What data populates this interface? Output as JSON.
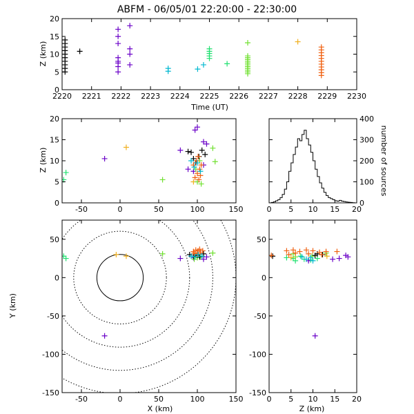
{
  "figure": {
    "title": "ABFM - 06/05/01 22:20:00 - 22:30:00",
    "colors": {
      "axis": "#000000",
      "background": "#ffffff"
    }
  },
  "chart_data": [
    {
      "id": "time-height",
      "type": "scatter",
      "xlabel": "Time (UT)",
      "ylabel": "Z (km)",
      "xlim": [
        2220,
        2230
      ],
      "ylim": [
        0,
        20
      ],
      "xticks": [
        2220,
        2221,
        2222,
        2223,
        2224,
        2225,
        2226,
        2227,
        2228,
        2229,
        2230
      ],
      "yticks": [
        0,
        5,
        10,
        15,
        20
      ],
      "series": [
        {
          "color": "#000000",
          "points": [
            [
              2220.1,
              5
            ],
            [
              2220.1,
              6
            ],
            [
              2220.1,
              7
            ],
            [
              2220.1,
              8
            ],
            [
              2220.1,
              9
            ],
            [
              2220.1,
              10
            ],
            [
              2220.1,
              11
            ],
            [
              2220.1,
              12
            ],
            [
              2220.1,
              13
            ],
            [
              2220.1,
              14
            ],
            [
              2220.6,
              10.8
            ]
          ]
        },
        {
          "color": "#6a00c8",
          "points": [
            [
              2221.9,
              17
            ],
            [
              2221.9,
              15
            ],
            [
              2221.9,
              13
            ],
            [
              2221.9,
              9
            ],
            [
              2221.9,
              8
            ],
            [
              2221.9,
              7.5
            ],
            [
              2221.9,
              6.5
            ],
            [
              2221.9,
              5
            ],
            [
              2222.3,
              18
            ],
            [
              2222.3,
              11.5
            ],
            [
              2222.3,
              10
            ],
            [
              2222.3,
              7
            ]
          ]
        },
        {
          "color": "#00b8d0",
          "points": [
            [
              2223.6,
              6
            ],
            [
              2223.6,
              5.2
            ],
            [
              2224.6,
              5.8
            ],
            [
              2224.8,
              7
            ]
          ]
        },
        {
          "color": "#20e070",
          "points": [
            [
              2225.0,
              10.2
            ],
            [
              2225.0,
              9.5
            ],
            [
              2225.0,
              8.8
            ],
            [
              2225.0,
              10.8
            ],
            [
              2225.0,
              11.5
            ],
            [
              2225.6,
              7.3
            ]
          ]
        },
        {
          "color": "#70e030",
          "points": [
            [
              2226.3,
              13.2
            ],
            [
              2226.3,
              9.5
            ],
            [
              2226.3,
              9
            ],
            [
              2226.3,
              8.5
            ],
            [
              2226.3,
              8
            ],
            [
              2226.3,
              7.5
            ],
            [
              2226.3,
              7
            ],
            [
              2226.3,
              6.5
            ],
            [
              2226.3,
              6
            ],
            [
              2226.3,
              5.5
            ],
            [
              2226.3,
              5
            ],
            [
              2226.3,
              4.5
            ]
          ]
        },
        {
          "color": "#f0b020",
          "points": [
            [
              2228.0,
              13.5
            ]
          ]
        },
        {
          "color": "#f06010",
          "points": [
            [
              2228.8,
              12
            ],
            [
              2228.8,
              11.2
            ],
            [
              2228.8,
              10.4
            ],
            [
              2228.8,
              9.6
            ],
            [
              2228.8,
              8.8
            ],
            [
              2228.8,
              8
            ],
            [
              2228.8,
              7.2
            ],
            [
              2228.8,
              6.4
            ],
            [
              2228.8,
              5.6
            ],
            [
              2228.8,
              4.8
            ],
            [
              2228.8,
              4
            ]
          ]
        }
      ]
    },
    {
      "id": "x-z",
      "type": "scatter",
      "xlabel": "",
      "ylabel": "Z (km)",
      "xlim": [
        -75,
        150
      ],
      "ylim": [
        0,
        20
      ],
      "xticks": [
        -50,
        0,
        50,
        100,
        150
      ],
      "yticks": [
        0,
        5,
        10,
        15,
        20
      ],
      "series": [
        {
          "color": "#20e070",
          "points": [
            [
              -70,
              7.2
            ],
            [
              -73,
              5.5
            ]
          ]
        },
        {
          "color": "#6a00c8",
          "points": [
            [
              -20,
              10.5
            ],
            [
              78,
              12.5
            ],
            [
              97,
              17.3
            ],
            [
              100,
              18
            ],
            [
              108,
              14.5
            ],
            [
              112,
              14
            ],
            [
              88,
              8
            ],
            [
              95,
              7.5
            ],
            [
              108,
              9
            ]
          ]
        },
        {
          "color": "#f0b020",
          "points": [
            [
              8,
              13.2
            ],
            [
              95,
              5
            ]
          ]
        },
        {
          "color": "#70e030",
          "points": [
            [
              55,
              5.5
            ],
            [
              120,
              13
            ],
            [
              123,
              9.8
            ],
            [
              100,
              5
            ],
            [
              105,
              4.5
            ],
            [
              98,
              8
            ],
            [
              103,
              10
            ]
          ]
        },
        {
          "color": "#000000",
          "points": [
            [
              88,
              12.2
            ],
            [
              95,
              10.5
            ],
            [
              102,
              11
            ],
            [
              110,
              11.5
            ],
            [
              98,
              9.5
            ],
            [
              92,
              12
            ],
            [
              106,
              12.5
            ]
          ]
        },
        {
          "color": "#f06010",
          "points": [
            [
              97,
              6
            ],
            [
              100,
              7
            ],
            [
              103,
              8
            ],
            [
              105,
              9
            ],
            [
              95,
              9
            ],
            [
              101,
              11
            ],
            [
              104,
              6.5
            ],
            [
              99,
              10
            ],
            [
              102,
              5.5
            ]
          ]
        },
        {
          "color": "#00b8d0",
          "points": [
            [
              92,
              10
            ],
            [
              96,
              8.5
            ],
            [
              100,
              9.5
            ],
            [
              104,
              7.5
            ]
          ]
        }
      ]
    },
    {
      "id": "height-histogram",
      "type": "bar",
      "xlabel": "",
      "ylabel": "number of sources",
      "xlim": [
        0,
        20
      ],
      "ylim": [
        0,
        400
      ],
      "xticks": [
        0,
        5,
        10,
        15,
        20
      ],
      "yticks": [
        0,
        100,
        200,
        300,
        400
      ],
      "x": [
        0.0,
        0.5,
        1.0,
        1.5,
        2.0,
        2.5,
        3.0,
        3.5,
        4.0,
        4.5,
        5.0,
        5.5,
        6.0,
        6.5,
        7.0,
        7.5,
        8.0,
        8.5,
        9.0,
        9.5,
        10.0,
        10.5,
        11.0,
        11.5,
        12.0,
        12.5,
        13.0,
        13.5,
        14.0,
        14.5,
        15.0,
        15.5,
        16.0,
        16.5,
        17.0,
        17.5,
        18.0,
        18.5,
        19.0,
        19.5
      ],
      "values": [
        0,
        2,
        5,
        10,
        15,
        25,
        40,
        65,
        100,
        150,
        190,
        230,
        265,
        305,
        295,
        325,
        345,
        305,
        275,
        240,
        200,
        160,
        125,
        95,
        70,
        50,
        35,
        25,
        20,
        15,
        10,
        8,
        12,
        8,
        6,
        4,
        3,
        2,
        1,
        0
      ]
    },
    {
      "id": "x-y",
      "type": "scatter",
      "xlabel": "X (km)",
      "ylabel": "Y (km)",
      "xlim": [
        -75,
        150
      ],
      "ylim": [
        -150,
        75
      ],
      "xticks": [
        -50,
        0,
        50,
        100,
        150
      ],
      "yticks": [
        -150,
        -100,
        -50,
        0,
        50
      ],
      "range_rings_km": [
        30,
        60,
        90,
        120,
        150
      ],
      "series": [
        {
          "color": "#20e070",
          "points": [
            [
              -73,
              28
            ],
            [
              -70,
              25
            ]
          ]
        },
        {
          "color": "#6a00c8",
          "points": [
            [
              -20,
              -76
            ],
            [
              78,
              25
            ],
            [
              95,
              26
            ],
            [
              112,
              27
            ],
            [
              108,
              24
            ]
          ]
        },
        {
          "color": "#f0b020",
          "points": [
            [
              -5,
              30
            ],
            [
              8,
              28
            ]
          ]
        },
        {
          "color": "#70e030",
          "points": [
            [
              55,
              31
            ],
            [
              120,
              32
            ],
            [
              100,
              26
            ],
            [
              96,
              24
            ],
            [
              104,
              27
            ]
          ]
        },
        {
          "color": "#000000",
          "points": [
            [
              90,
              30
            ],
            [
              95,
              28
            ],
            [
              100,
              29
            ],
            [
              108,
              31
            ],
            [
              103,
              27
            ]
          ]
        },
        {
          "color": "#f06010",
          "points": [
            [
              95,
              34
            ],
            [
              98,
              36
            ],
            [
              101,
              35
            ],
            [
              104,
              33
            ],
            [
              107,
              35
            ],
            [
              100,
              31
            ],
            [
              96,
              32
            ],
            [
              103,
              37
            ]
          ]
        },
        {
          "color": "#00b8d0",
          "points": [
            [
              92,
              28
            ],
            [
              97,
              27
            ],
            [
              101,
              30
            ],
            [
              106,
              28
            ]
          ]
        }
      ]
    },
    {
      "id": "z-y",
      "type": "scatter",
      "xlabel": "Z (km)",
      "ylabel": "",
      "xlim": [
        0,
        20
      ],
      "ylim": [
        -150,
        75
      ],
      "xticks": [
        0,
        5,
        10,
        15,
        20
      ],
      "yticks": [
        -150,
        -100,
        -50,
        0,
        50
      ],
      "series": [
        {
          "color": "#20e070",
          "points": [
            [
              7.2,
              28
            ],
            [
              5.5,
              25
            ],
            [
              4,
              26
            ],
            [
              6,
              22
            ],
            [
              8,
              24
            ],
            [
              9.5,
              23
            ],
            [
              11,
              25
            ]
          ]
        },
        {
          "color": "#6a00c8",
          "points": [
            [
              10.5,
              -76
            ],
            [
              17.5,
              29
            ],
            [
              18,
              27
            ],
            [
              16,
              25
            ],
            [
              14.5,
              24
            ],
            [
              9,
              22
            ]
          ]
        },
        {
          "color": "#f0b020",
          "points": [
            [
              13.2,
              28
            ],
            [
              5,
              26
            ]
          ]
        },
        {
          "color": "#70e030",
          "points": [
            [
              5.5,
              31
            ],
            [
              13,
              32
            ],
            [
              9.8,
              28
            ],
            [
              6,
              27
            ]
          ]
        },
        {
          "color": "#000000",
          "points": [
            [
              0.8,
              28
            ],
            [
              12.2,
              30
            ],
            [
              10.5,
              29
            ],
            [
              11,
              31
            ]
          ]
        },
        {
          "color": "#f06010",
          "points": [
            [
              0.5,
              29
            ],
            [
              4,
              35
            ],
            [
              5.5,
              36
            ],
            [
              7,
              34
            ],
            [
              8.5,
              36
            ],
            [
              10,
              35
            ],
            [
              11.5,
              33
            ],
            [
              13,
              34
            ],
            [
              6,
              32
            ],
            [
              9,
              31
            ],
            [
              12,
              30
            ],
            [
              15.5,
              34
            ],
            [
              4.5,
              30
            ]
          ]
        },
        {
          "color": "#00b8d0",
          "points": [
            [
              8.5,
              24
            ],
            [
              9.5,
              26
            ],
            [
              7.5,
              27
            ],
            [
              10,
              22
            ]
          ]
        }
      ]
    }
  ]
}
